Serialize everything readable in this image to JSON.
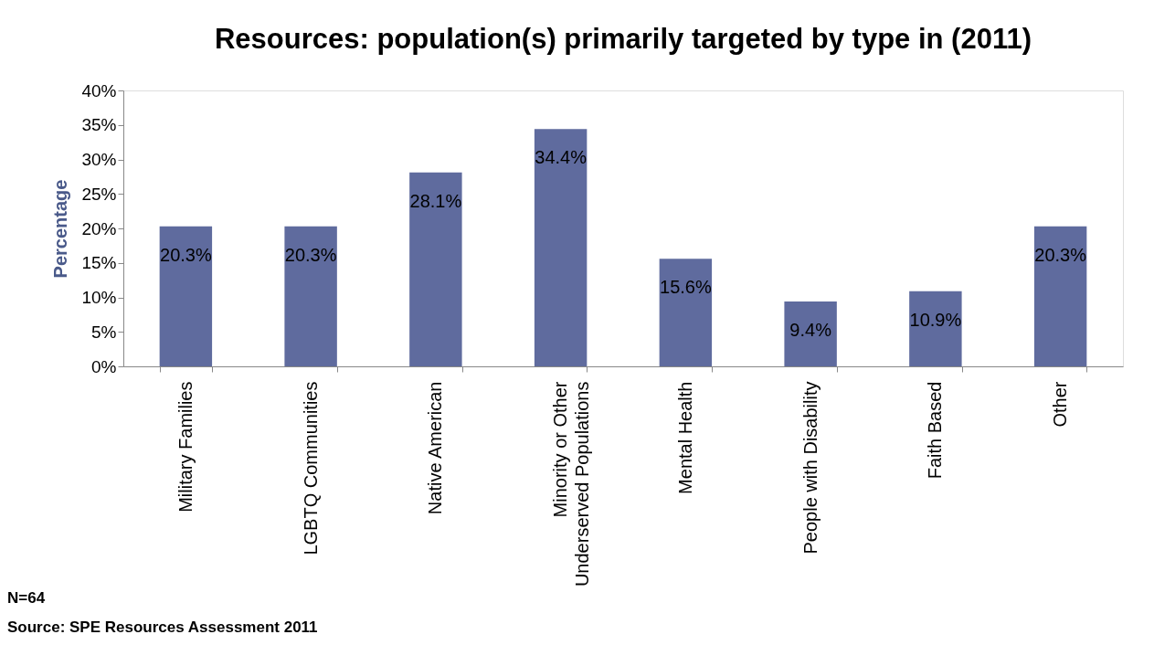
{
  "chart_data": {
    "type": "bar",
    "title": "Resources: population(s) primarily targeted by type in (2011)",
    "ylabel": "Percentage",
    "categories": [
      "Military Families",
      "LGBTQ Communities",
      "Native American",
      "Minority or Other Underserved Populations",
      "Mental Health",
      "People with Disability",
      "Faith Based",
      "Other"
    ],
    "values": [
      20.3,
      20.3,
      28.1,
      34.4,
      15.6,
      9.4,
      10.9,
      20.3
    ],
    "value_labels": [
      "20.3%",
      "20.3%",
      "28.1%",
      "34.4%",
      "15.6%",
      "9.4%",
      "10.9%",
      "20.3%"
    ],
    "color": "#5f6b9e",
    "ylim": [
      0,
      40
    ],
    "yticks": [
      {
        "value": 0,
        "label": "0%"
      },
      {
        "value": 5,
        "label": "5%"
      },
      {
        "value": 10,
        "label": "10%"
      },
      {
        "value": 15,
        "label": "15%"
      },
      {
        "value": 20,
        "label": "20%"
      },
      {
        "value": 25,
        "label": "25%"
      },
      {
        "value": 30,
        "label": "30%"
      },
      {
        "value": 35,
        "label": "35%"
      },
      {
        "value": 40,
        "label": "40%"
      }
    ],
    "grid": false,
    "annotations": [
      "N=64",
      "Source: SPE Resources Assessment 2011"
    ]
  }
}
